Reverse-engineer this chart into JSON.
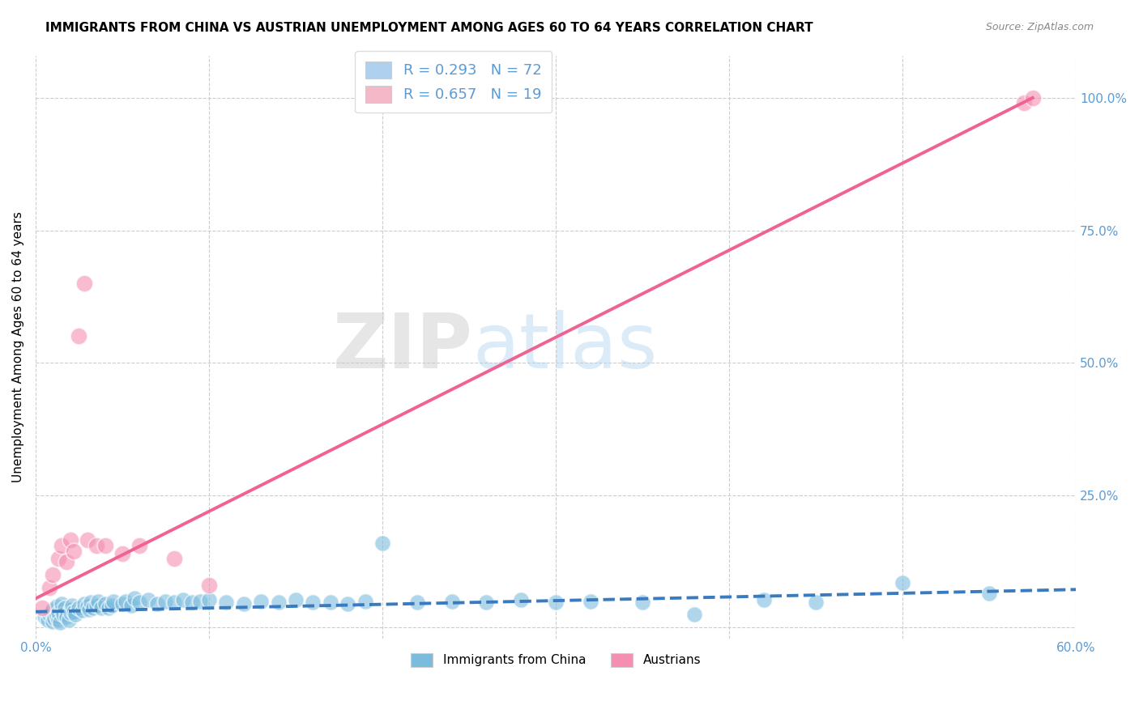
{
  "title": "IMMIGRANTS FROM CHINA VS AUSTRIAN UNEMPLOYMENT AMONG AGES 60 TO 64 YEARS CORRELATION CHART",
  "source": "Source: ZipAtlas.com",
  "ylabel": "Unemployment Among Ages 60 to 64 years",
  "xlim": [
    0.0,
    0.6
  ],
  "ylim": [
    -0.02,
    1.08
  ],
  "xticks": [
    0.0,
    0.1,
    0.2,
    0.3,
    0.4,
    0.5,
    0.6
  ],
  "yticks": [
    0.0,
    0.25,
    0.5,
    0.75,
    1.0
  ],
  "ytick_labels_right": [
    "",
    "25.0%",
    "50.0%",
    "75.0%",
    "100.0%"
  ],
  "xtick_labels": [
    "0.0%",
    "",
    "",
    "",
    "",
    "",
    "60.0%"
  ],
  "legend_entries": [
    {
      "label": "R = 0.293   N = 72",
      "color": "#afd0ee"
    },
    {
      "label": "R = 0.657   N = 19",
      "color": "#f5b8c8"
    }
  ],
  "blue_color": "#7bbcde",
  "pink_color": "#f48fb1",
  "blue_line_color": "#3a7bbf",
  "pink_line_color": "#f06292",
  "watermark_zip": "ZIP",
  "watermark_atlas": "atlas",
  "blue_scatter_x": [
    0.005,
    0.007,
    0.008,
    0.009,
    0.01,
    0.01,
    0.011,
    0.012,
    0.012,
    0.013,
    0.013,
    0.014,
    0.015,
    0.015,
    0.016,
    0.017,
    0.018,
    0.019,
    0.02,
    0.02,
    0.021,
    0.022,
    0.023,
    0.025,
    0.027,
    0.028,
    0.03,
    0.031,
    0.032,
    0.033,
    0.035,
    0.036,
    0.038,
    0.04,
    0.042,
    0.044,
    0.045,
    0.05,
    0.052,
    0.055,
    0.057,
    0.06,
    0.065,
    0.07,
    0.075,
    0.08,
    0.085,
    0.09,
    0.095,
    0.1,
    0.11,
    0.12,
    0.13,
    0.14,
    0.15,
    0.16,
    0.17,
    0.18,
    0.19,
    0.2,
    0.22,
    0.24,
    0.26,
    0.28,
    0.3,
    0.32,
    0.35,
    0.38,
    0.42,
    0.45,
    0.5,
    0.55
  ],
  "blue_scatter_y": [
    0.02,
    0.015,
    0.025,
    0.03,
    0.012,
    0.035,
    0.018,
    0.022,
    0.04,
    0.015,
    0.028,
    0.01,
    0.032,
    0.045,
    0.025,
    0.038,
    0.02,
    0.015,
    0.035,
    0.028,
    0.042,
    0.03,
    0.025,
    0.038,
    0.032,
    0.045,
    0.04,
    0.035,
    0.048,
    0.038,
    0.042,
    0.05,
    0.038,
    0.045,
    0.038,
    0.042,
    0.05,
    0.045,
    0.05,
    0.042,
    0.055,
    0.048,
    0.052,
    0.045,
    0.05,
    0.048,
    0.052,
    0.048,
    0.05,
    0.052,
    0.048,
    0.045,
    0.05,
    0.048,
    0.052,
    0.048,
    0.048,
    0.045,
    0.05,
    0.16,
    0.048,
    0.05,
    0.048,
    0.052,
    0.048,
    0.05,
    0.048,
    0.025,
    0.052,
    0.048,
    0.085,
    0.065
  ],
  "pink_scatter_x": [
    0.004,
    0.008,
    0.01,
    0.013,
    0.015,
    0.018,
    0.02,
    0.022,
    0.025,
    0.028,
    0.03,
    0.035,
    0.04,
    0.05,
    0.06,
    0.08,
    0.1,
    0.57,
    0.575
  ],
  "pink_scatter_y": [
    0.038,
    0.075,
    0.1,
    0.13,
    0.155,
    0.125,
    0.165,
    0.145,
    0.55,
    0.65,
    0.165,
    0.155,
    0.155,
    0.14,
    0.155,
    0.13,
    0.08,
    0.99,
    1.0
  ],
  "blue_line_x": [
    0.0,
    0.6
  ],
  "blue_line_y": [
    0.03,
    0.072
  ],
  "pink_line_x": [
    0.0,
    0.575
  ],
  "pink_line_y": [
    0.055,
    1.0
  ],
  "title_fontsize": 11,
  "tick_color": "#5b9bd5",
  "grid_color": "#cccccc",
  "background_color": "#ffffff"
}
